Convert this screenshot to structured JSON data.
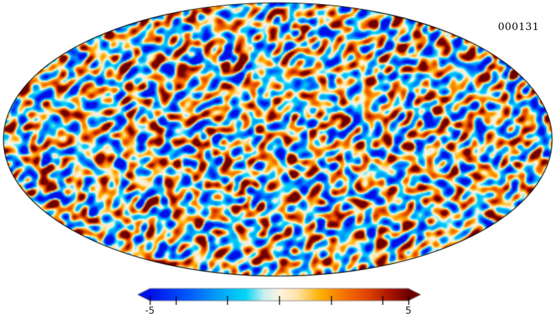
{
  "figure": {
    "background": "#ffffff"
  },
  "chart_data": {
    "type": "heatmap",
    "subtype": "all-sky-map",
    "projection": "mollweide",
    "frame_label": "000131",
    "description": "Simulated CMB temperature anisotropy full-sky map in Mollweide projection with a horizontal colorbar ranging from -5 to 5; frame number 000131 shown at top right.",
    "value_range": [
      -5,
      5
    ],
    "map_outline_color": "#000000",
    "colormap": {
      "name": "planck-parchment",
      "stops": [
        [
          0.0,
          "#0010e8"
        ],
        [
          0.14,
          "#0054ff"
        ],
        [
          0.3,
          "#00b4f8"
        ],
        [
          0.37,
          "#00d5f5"
        ],
        [
          0.44,
          "#c8eff0"
        ],
        [
          0.5,
          "#fdf4e2"
        ],
        [
          0.57,
          "#ffe3a8"
        ],
        [
          0.66,
          "#ffb000"
        ],
        [
          0.75,
          "#f77200"
        ],
        [
          0.84,
          "#e04500"
        ],
        [
          0.93,
          "#a81400"
        ],
        [
          1.0,
          "#6e0000"
        ]
      ]
    },
    "colorbar": {
      "orientation": "horizontal",
      "vmin": -5,
      "vmax": 5,
      "ticks": [
        -5,
        -4,
        -2,
        0,
        2,
        4,
        5
      ],
      "labels": [
        {
          "value": -5,
          "text": "-5"
        },
        {
          "value": 5,
          "text": "5"
        }
      ],
      "outline_color": "#888888",
      "tick_color": "#000000",
      "label_color": "#1a1a1a"
    }
  }
}
